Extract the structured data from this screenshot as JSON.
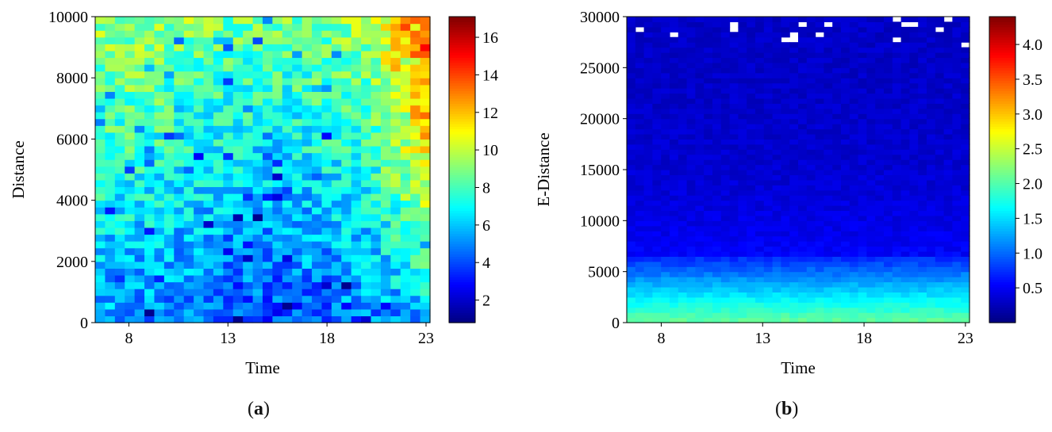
{
  "chart_data": [
    {
      "type": "heatmap",
      "panel_label": "a",
      "xlabel": "Time",
      "ylabel": "Distance",
      "xlim": [
        6.3,
        23.2
      ],
      "ylim": [
        0,
        10000
      ],
      "xticks": [
        8,
        13,
        18,
        23
      ],
      "yticks": [
        0,
        2000,
        4000,
        6000,
        8000,
        10000
      ],
      "colorbar": {
        "colormap": "jet",
        "min": 0.8,
        "max": 17.1,
        "ticks": [
          2,
          4,
          6,
          8,
          10,
          12,
          14,
          16
        ]
      },
      "description_values": {
        "x_bins": 34,
        "y_bins": 45,
        "typical_low_region": 5,
        "typical_mid_region": 7.5,
        "typical_high_region": 9.5,
        "evening_far_peak": 15
      }
    },
    {
      "type": "heatmap",
      "panel_label": "b",
      "xlabel": "Time",
      "ylabel": "E-Distance",
      "xlim": [
        6.3,
        23.2
      ],
      "ylim": [
        0,
        30000
      ],
      "xticks": [
        8,
        13,
        18,
        23
      ],
      "yticks": [
        0,
        5000,
        10000,
        15000,
        20000,
        25000,
        30000
      ],
      "colorbar": {
        "colormap": "jet",
        "min": 0.0,
        "max": 4.4,
        "ticks": [
          0.5,
          1.0,
          1.5,
          2.0,
          2.5,
          3.0,
          3.5,
          4.0
        ]
      },
      "description_values": {
        "x_bins": 40,
        "y_bins": 60,
        "near_zero_peak": 2.1,
        "band_5000": 1.0,
        "far_background": 0.3
      }
    }
  ]
}
